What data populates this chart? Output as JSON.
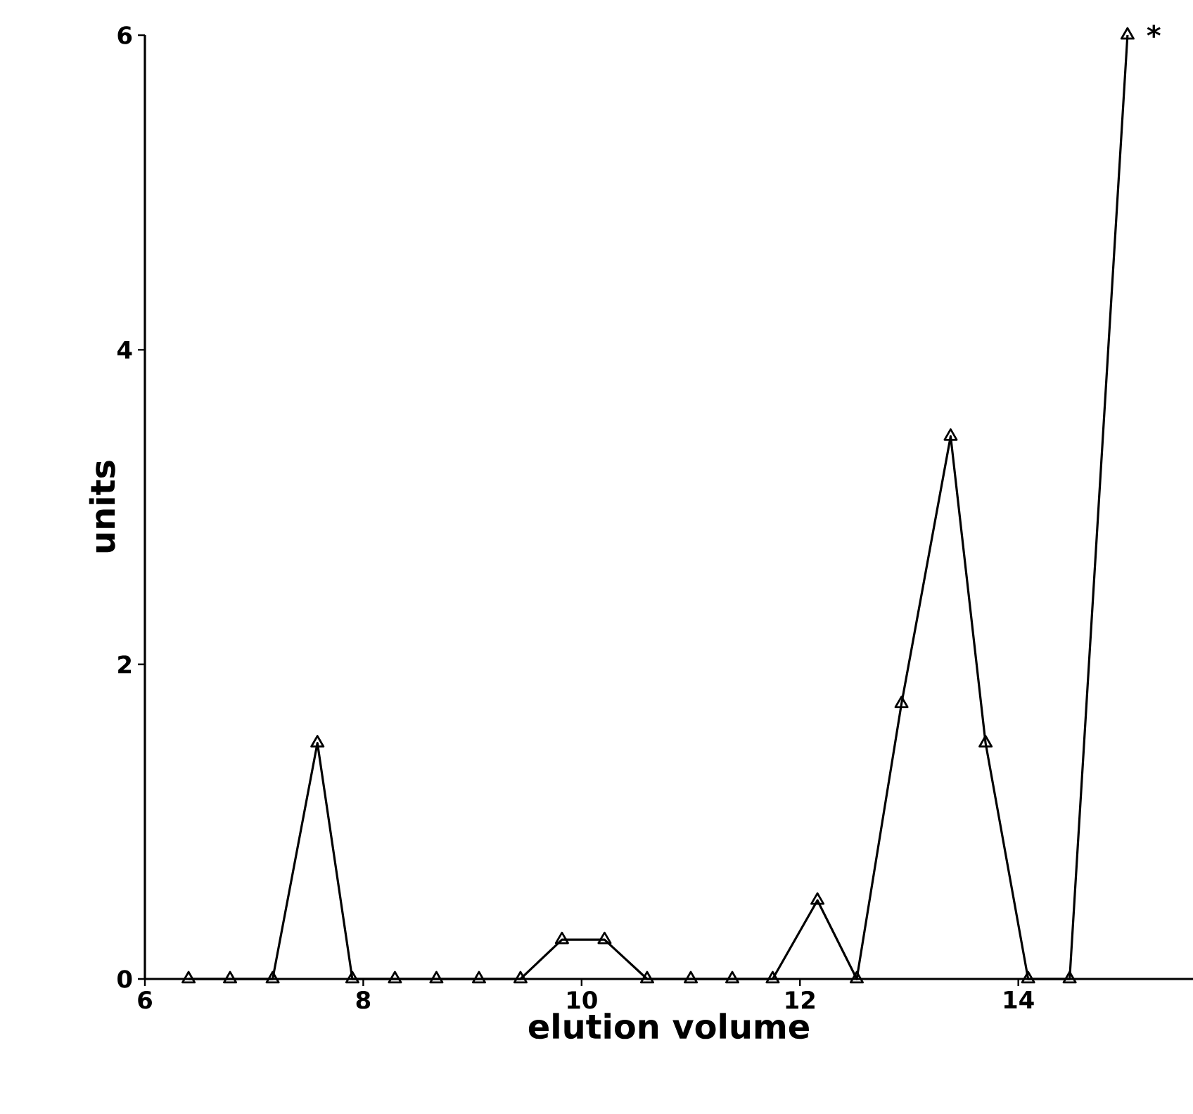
{
  "chart_data": {
    "type": "line",
    "xlabel": "elution volume",
    "ylabel": "units",
    "x": [
      6.4,
      6.78,
      7.17,
      7.58,
      7.9,
      8.29,
      8.67,
      9.06,
      9.44,
      9.82,
      10.21,
      10.6,
      11.0,
      11.38,
      11.75,
      12.16,
      12.52,
      12.93,
      13.38,
      13.7,
      14.09,
      14.47,
      15.0
    ],
    "series": [
      {
        "color": "#000000",
        "values": [
          0,
          0,
          0,
          1.5,
          0,
          0,
          0,
          0,
          0,
          0.25,
          0.25,
          0,
          0,
          0,
          0,
          0.5,
          0,
          1.75,
          3.45,
          1.5,
          0,
          0,
          6
        ]
      }
    ],
    "xlim": [
      6,
      15.6
    ],
    "ylim": [
      0,
      6
    ],
    "xticks": [
      6,
      8,
      10,
      12,
      14
    ],
    "yticks": [
      0,
      2,
      4,
      6
    ],
    "marker": "triangle",
    "line_style": "solid",
    "annotations": [
      {
        "text": "*",
        "x": 15.0,
        "y": 6
      }
    ]
  }
}
